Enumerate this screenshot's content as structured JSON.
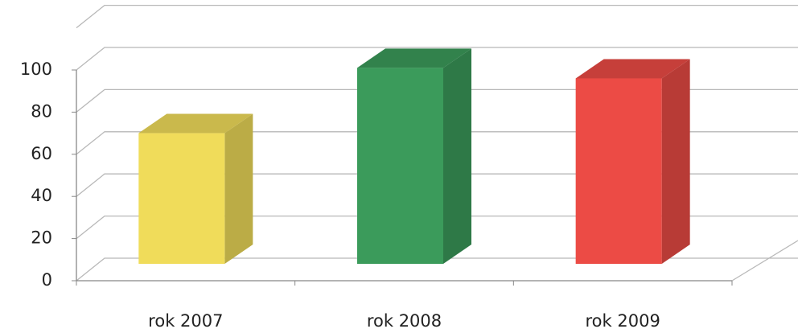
{
  "chart_data": {
    "type": "bar",
    "categories": [
      "rok 2007",
      "rok 2008",
      "rok 2009"
    ],
    "values": [
      62,
      93,
      88
    ],
    "colors": [
      "#f0dc5a",
      "#3b9b5b",
      "#ec4b45"
    ],
    "ylim": [
      0,
      100
    ],
    "yticks": [
      0,
      20,
      40,
      60,
      80,
      100
    ],
    "grid": true
  }
}
